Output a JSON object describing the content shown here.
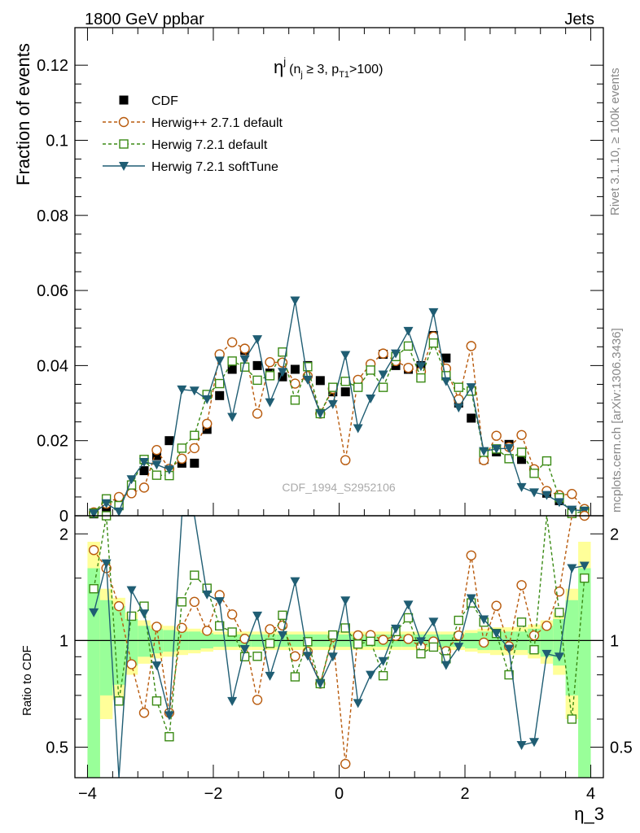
{
  "header": {
    "left": "1800 GeV ppbar",
    "right": "Jets"
  },
  "side_labels": {
    "rivet": "Rivet 3.1.10, ≥ 100k events",
    "mcplots": "mcplots.cern.ch [arXiv:1306.3436]"
  },
  "watermark": "CDF_1994_S2952106",
  "plot_title": {
    "base": "η",
    "sup": "j",
    "cond1": "(n",
    "cond1_sub": "j",
    "cond2": " ≥ 3, p",
    "cond2_sub": "T1",
    "cond3": ">100)"
  },
  "axes": {
    "ylabel_main": "Fraction of events",
    "ylabel_ratio": "Ratio to CDF",
    "xlabel": "η_3"
  },
  "colors": {
    "cdf": "#000000",
    "herwigpp": "#b85a0c",
    "herwig721": "#3a8a14",
    "softtune": "#1f5d73",
    "band_inner": "#99ff99",
    "band_outer": "#ffff99"
  },
  "chart_data": {
    "type": "scatter",
    "x": [
      -3.9,
      -3.7,
      -3.5,
      -3.3,
      -3.1,
      -2.9,
      -2.7,
      -2.5,
      -2.3,
      -2.1,
      -1.9,
      -1.7,
      -1.5,
      -1.3,
      -1.1,
      -0.9,
      -0.7,
      -0.5,
      -0.3,
      -0.1,
      0.1,
      0.3,
      0.5,
      0.7,
      0.9,
      1.1,
      1.3,
      1.5,
      1.7,
      1.9,
      2.1,
      2.3,
      2.5,
      2.7,
      2.9,
      3.1,
      3.3,
      3.5,
      3.7,
      3.9
    ],
    "main": {
      "xlim": [
        -4.2,
        4.2
      ],
      "ylim": [
        0,
        0.13
      ],
      "yticks": [
        0,
        0.02,
        0.04,
        0.06,
        0.08,
        0.1,
        0.12
      ],
      "ytick_labels": [
        "0",
        "0.02",
        "0.04",
        "0.06",
        "0.08",
        "0.1",
        "0.12"
      ]
    },
    "ratio": {
      "ylim": [
        0.41,
        2.25
      ],
      "yticks": [
        0.5,
        1,
        2
      ],
      "ytick_labels": [
        "0.5",
        "1",
        "2"
      ],
      "xticks": [
        -4,
        -2,
        0,
        2,
        4
      ],
      "xtick_labels": [
        "−4",
        "−2",
        "0",
        "2",
        "4"
      ]
    },
    "series": [
      {
        "name": "CDF",
        "marker": "square-filled",
        "values": [
          0.0005,
          0.002,
          0.004,
          0.007,
          0.012,
          0.016,
          0.02,
          0.014,
          0.014,
          0.023,
          0.032,
          0.039,
          0.044,
          0.04,
          0.038,
          0.037,
          0.039,
          0.04,
          0.036,
          0.033,
          0.033,
          0.035,
          0.039,
          0.043,
          0.04,
          0.039,
          0.04,
          0.048,
          0.042,
          0.03,
          0.026,
          0.015,
          0.017,
          0.019,
          0.015,
          0.012,
          0.006,
          0.004,
          0.001,
          0.0008
        ]
      },
      {
        "name": "Herwig++ 2.7.1 default",
        "marker": "circle-open",
        "dashed": true,
        "values": [
          0.0009,
          0.0032,
          0.005,
          0.006,
          0.0075,
          0.0175,
          0.0125,
          0.0152,
          0.018,
          0.0245,
          0.043,
          0.0462,
          0.0445,
          0.0272,
          0.0409,
          0.0408,
          0.0352,
          0.0372,
          0.0272,
          0.0338,
          0.0148,
          0.0362,
          0.0404,
          0.0432,
          0.0412,
          0.0394,
          0.0384,
          0.0477,
          0.0392,
          0.031,
          0.0452,
          0.0148,
          0.0213,
          0.0183,
          0.0215,
          0.0124,
          0.0066,
          0.0055,
          0.0058,
          0.0018
        ]
      },
      {
        "name": "Herwig 7.2.1 default",
        "marker": "square-open",
        "dashed": true,
        "values": [
          0.0007,
          0.0045,
          0.0027,
          0.0082,
          0.015,
          0.0108,
          0.0107,
          0.018,
          0.0214,
          0.0323,
          0.0352,
          0.0412,
          0.0396,
          0.0361,
          0.0373,
          0.0436,
          0.0308,
          0.0397,
          0.0272,
          0.0342,
          0.0358,
          0.0342,
          0.0388,
          0.0342,
          0.0424,
          0.0452,
          0.0367,
          0.046,
          0.0373,
          0.0342,
          0.0332,
          0.0169,
          0.0178,
          0.0152,
          0.0169,
          0.0113,
          0.0146,
          0.0048,
          0.0006,
          0.0012
        ]
      },
      {
        "name": "Herwig 7.2.1 softTune",
        "marker": "triangle-down-filled",
        "values": [
          0.0006,
          0.0033,
          0.0011,
          0.0097,
          0.0143,
          0.0136,
          0.0123,
          0.0336,
          0.0333,
          0.031,
          0.0413,
          0.0263,
          0.0416,
          0.047,
          0.0302,
          0.0383,
          0.0573,
          0.0362,
          0.0272,
          0.0297,
          0.0428,
          0.0233,
          0.0312,
          0.0376,
          0.0432,
          0.0492,
          0.0398,
          0.0542,
          0.0358,
          0.0288,
          0.0342,
          0.0172,
          0.0178,
          0.018,
          0.0076,
          0.0062,
          0.0055,
          0.0036,
          0.0016,
          0.0013
        ]
      }
    ],
    "cdf_error_band": {
      "inner_rel": [
        0.6,
        0.3,
        0.25,
        0.15,
        0.1,
        0.08,
        0.07,
        0.06,
        0.06,
        0.05,
        0.04,
        0.04,
        0.04,
        0.04,
        0.04,
        0.04,
        0.04,
        0.04,
        0.04,
        0.04,
        0.04,
        0.04,
        0.04,
        0.04,
        0.04,
        0.04,
        0.04,
        0.04,
        0.04,
        0.04,
        0.05,
        0.06,
        0.06,
        0.06,
        0.06,
        0.08,
        0.1,
        0.15,
        0.3,
        0.6
      ],
      "outer_rel": [
        0.9,
        0.4,
        0.32,
        0.2,
        0.14,
        0.11,
        0.1,
        0.09,
        0.08,
        0.07,
        0.06,
        0.06,
        0.06,
        0.06,
        0.06,
        0.06,
        0.06,
        0.06,
        0.06,
        0.06,
        0.06,
        0.06,
        0.06,
        0.06,
        0.06,
        0.06,
        0.06,
        0.06,
        0.06,
        0.06,
        0.07,
        0.08,
        0.09,
        0.09,
        0.09,
        0.11,
        0.14,
        0.2,
        0.4,
        0.9
      ]
    }
  }
}
